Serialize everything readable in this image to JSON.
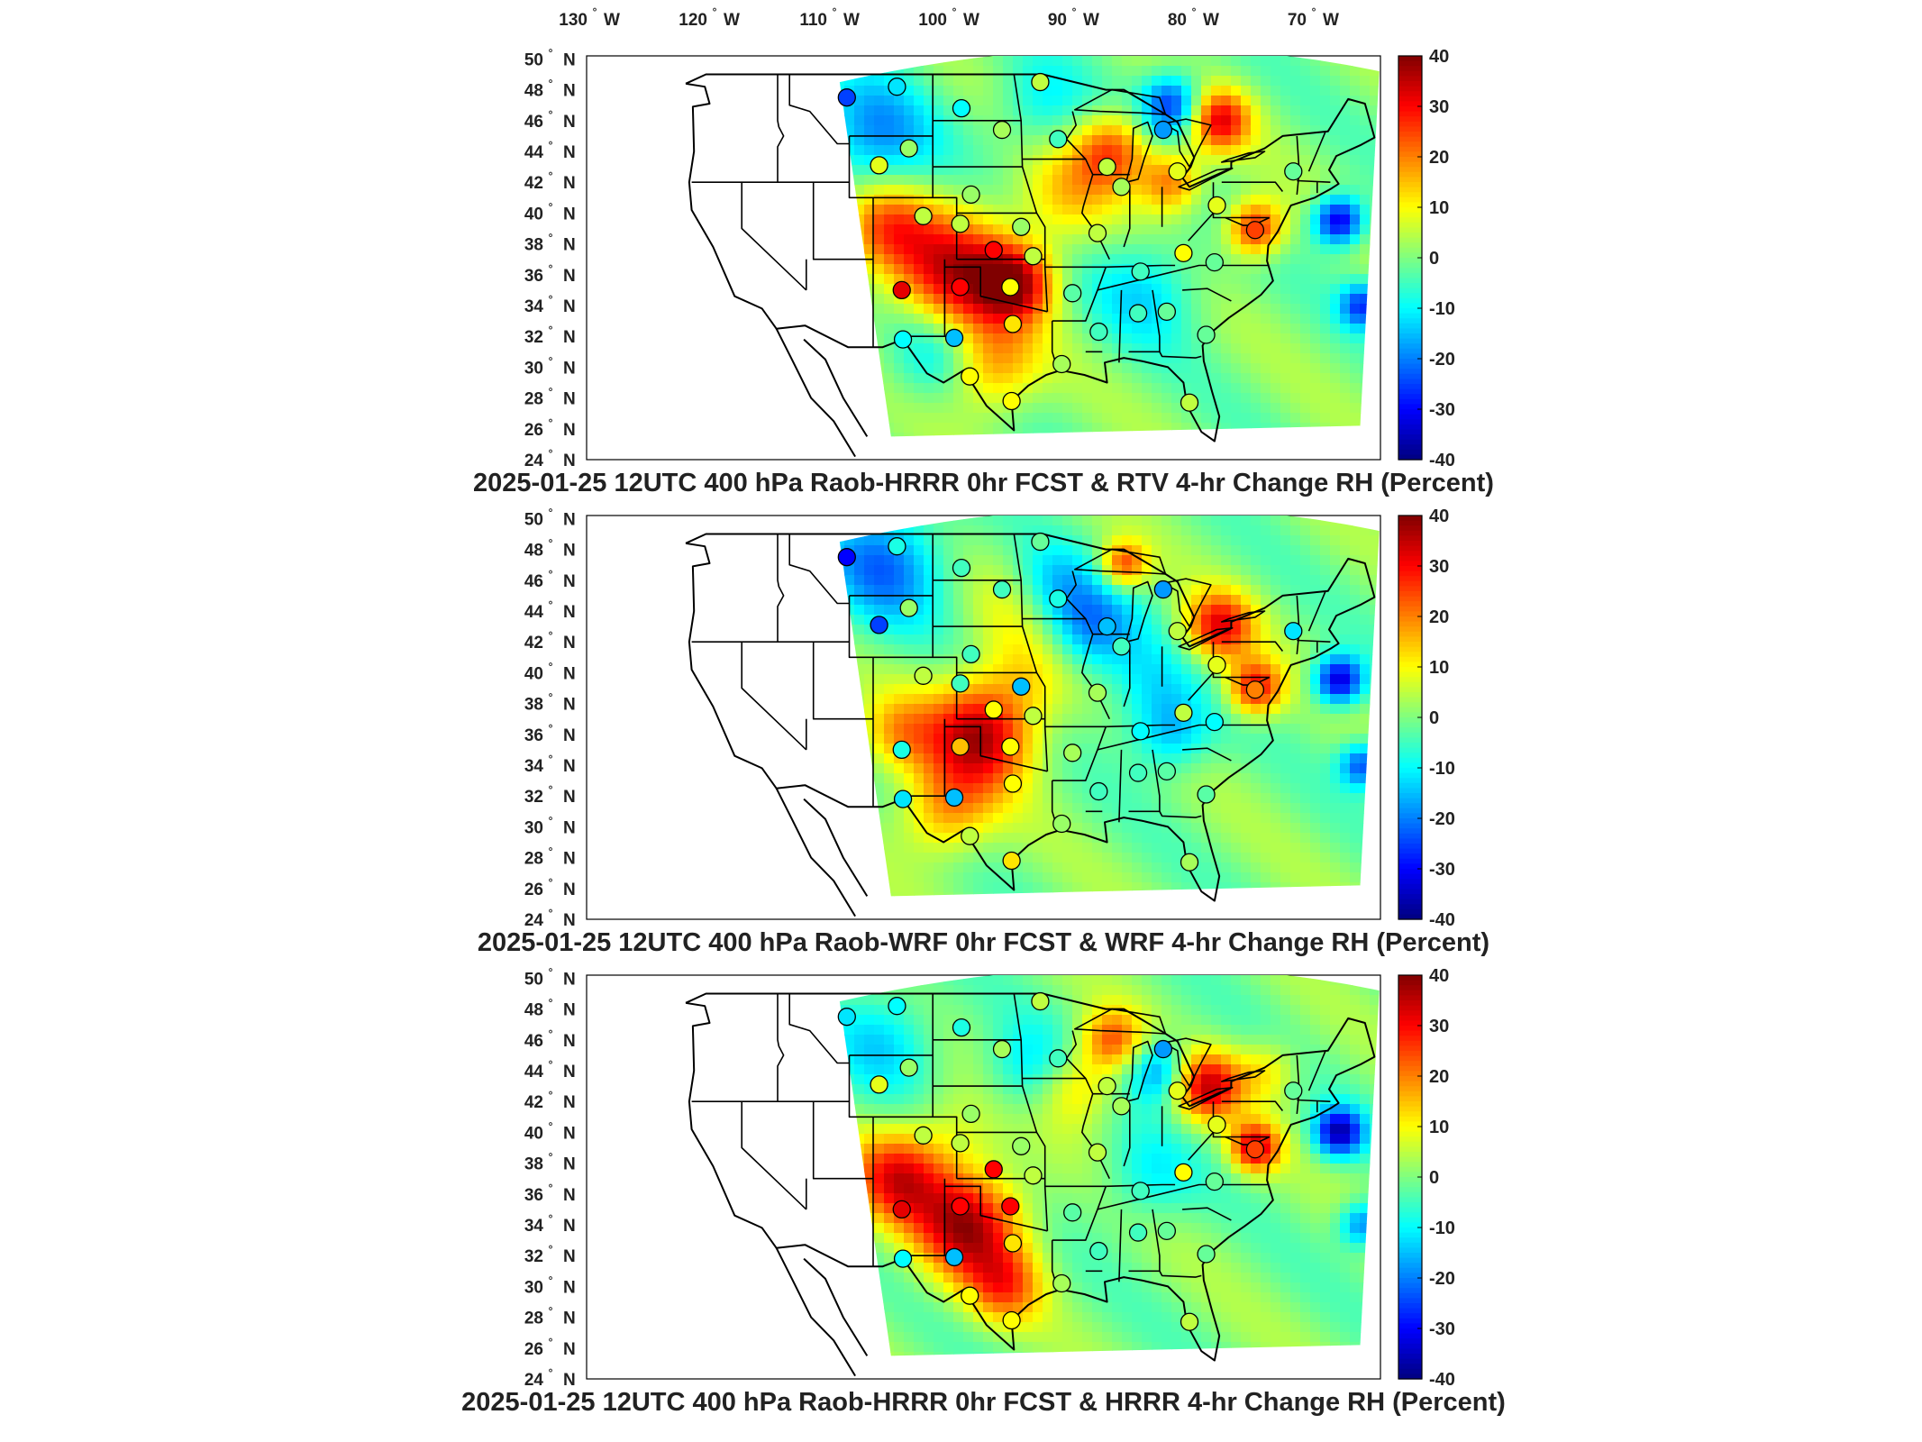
{
  "lon_labels": [
    "130",
    "120",
    "110",
    "100",
    "90",
    "80",
    "70"
  ],
  "lon_suffix": "W",
  "lat_labels": [
    "50",
    "48",
    "46",
    "44",
    "42",
    "40",
    "38",
    "36",
    "34",
    "32",
    "30",
    "28",
    "26",
    "24"
  ],
  "lat_suffix": "N",
  "degree_symbol": "°",
  "colorbar_ticks": [
    "40",
    "30",
    "20",
    "10",
    "0",
    "-10",
    "-20",
    "-30",
    "-40"
  ],
  "panels": [
    {
      "title": "2025-01-25 12UTC 400 hPa Raob-HRRR 0hr FCST & RTV 4-hr Change RH (Percent)",
      "raob_points": [
        {
          "lon": -111.2,
          "lat": 47.5,
          "value": -25
        },
        {
          "lon": -107.0,
          "lat": 48.2,
          "value": -12
        },
        {
          "lon": -101.6,
          "lat": 46.8,
          "value": -10
        },
        {
          "lon": -95.0,
          "lat": 48.5,
          "value": 5
        },
        {
          "lon": -108.5,
          "lat": 43.1,
          "value": 8
        },
        {
          "lon": -106.0,
          "lat": 44.2,
          "value": 2
        },
        {
          "lon": -98.2,
          "lat": 45.4,
          "value": 3
        },
        {
          "lon": -100.8,
          "lat": 41.2,
          "value": 2
        },
        {
          "lon": -104.8,
          "lat": 39.8,
          "value": 5
        },
        {
          "lon": -93.5,
          "lat": 44.8,
          "value": -5
        },
        {
          "lon": -89.4,
          "lat": 43.0,
          "value": 5
        },
        {
          "lon": -83.5,
          "lat": 42.7,
          "value": 8
        },
        {
          "lon": -84.7,
          "lat": 45.4,
          "value": -18
        },
        {
          "lon": -88.2,
          "lat": 41.7,
          "value": 3
        },
        {
          "lon": -73.8,
          "lat": 42.7,
          "value": -2
        },
        {
          "lon": -77.0,
          "lat": 38.9,
          "value": 25
        },
        {
          "lon": -80.2,
          "lat": 40.5,
          "value": 8
        },
        {
          "lon": -96.6,
          "lat": 39.1,
          "value": 2
        },
        {
          "lon": -101.7,
          "lat": 39.3,
          "value": 5
        },
        {
          "lon": -95.6,
          "lat": 37.2,
          "value": 5
        },
        {
          "lon": -90.2,
          "lat": 38.7,
          "value": 5
        },
        {
          "lon": -86.6,
          "lat": 36.2,
          "value": -5
        },
        {
          "lon": -83.0,
          "lat": 37.4,
          "value": 10
        },
        {
          "lon": -80.4,
          "lat": 36.8,
          "value": -2
        },
        {
          "lon": -97.5,
          "lat": 35.2,
          "value": 10
        },
        {
          "lon": -101.7,
          "lat": 35.2,
          "value": 30
        },
        {
          "lon": -106.6,
          "lat": 35.0,
          "value": 32
        },
        {
          "lon": -98.9,
          "lat": 37.6,
          "value": 30
        },
        {
          "lon": -97.3,
          "lat": 32.8,
          "value": 12
        },
        {
          "lon": -92.3,
          "lat": 34.8,
          "value": -3
        },
        {
          "lon": -90.1,
          "lat": 32.3,
          "value": -5
        },
        {
          "lon": -86.8,
          "lat": 33.5,
          "value": -5
        },
        {
          "lon": -84.4,
          "lat": 33.6,
          "value": -2
        },
        {
          "lon": -81.1,
          "lat": 32.1,
          "value": -2
        },
        {
          "lon": -102.2,
          "lat": 31.9,
          "value": -15
        },
        {
          "lon": -106.5,
          "lat": 31.8,
          "value": -10
        },
        {
          "lon": -97.4,
          "lat": 27.8,
          "value": 10
        },
        {
          "lon": -100.9,
          "lat": 29.4,
          "value": 10
        },
        {
          "lon": -93.2,
          "lat": 30.2,
          "value": 3
        },
        {
          "lon": -82.5,
          "lat": 27.7,
          "value": 5
        }
      ]
    },
    {
      "title": "2025-01-25 12UTC 400 hPa Raob-WRF 0hr FCST & WRF 4-hr Change RH (Percent)",
      "raob_points": [
        {
          "lon": -111.2,
          "lat": 47.5,
          "value": -30
        },
        {
          "lon": -107.0,
          "lat": 48.2,
          "value": -8
        },
        {
          "lon": -101.6,
          "lat": 46.8,
          "value": -5
        },
        {
          "lon": -95.0,
          "lat": 48.5,
          "value": -2
        },
        {
          "lon": -108.5,
          "lat": 43.1,
          "value": -25
        },
        {
          "lon": -106.0,
          "lat": 44.2,
          "value": 2
        },
        {
          "lon": -98.2,
          "lat": 45.4,
          "value": -5
        },
        {
          "lon": -100.8,
          "lat": 41.2,
          "value": -5
        },
        {
          "lon": -104.8,
          "lat": 39.8,
          "value": 5
        },
        {
          "lon": -93.5,
          "lat": 44.8,
          "value": -8
        },
        {
          "lon": -89.4,
          "lat": 43.0,
          "value": -15
        },
        {
          "lon": -83.5,
          "lat": 42.7,
          "value": 5
        },
        {
          "lon": -84.7,
          "lat": 45.4,
          "value": -18
        },
        {
          "lon": -88.2,
          "lat": 41.7,
          "value": -5
        },
        {
          "lon": -73.8,
          "lat": 42.7,
          "value": -12
        },
        {
          "lon": -77.0,
          "lat": 38.9,
          "value": 20
        },
        {
          "lon": -80.2,
          "lat": 40.5,
          "value": 8
        },
        {
          "lon": -96.6,
          "lat": 39.1,
          "value": -15
        },
        {
          "lon": -101.7,
          "lat": 39.3,
          "value": -5
        },
        {
          "lon": -95.6,
          "lat": 37.2,
          "value": 5
        },
        {
          "lon": -90.2,
          "lat": 38.7,
          "value": 3
        },
        {
          "lon": -86.6,
          "lat": 36.2,
          "value": -10
        },
        {
          "lon": -83.0,
          "lat": 37.4,
          "value": 5
        },
        {
          "lon": -80.4,
          "lat": 36.8,
          "value": -10
        },
        {
          "lon": -97.5,
          "lat": 35.2,
          "value": 10
        },
        {
          "lon": -101.7,
          "lat": 35.2,
          "value": 15
        },
        {
          "lon": -106.6,
          "lat": 35.0,
          "value": -8
        },
        {
          "lon": -98.9,
          "lat": 37.6,
          "value": 10
        },
        {
          "lon": -97.3,
          "lat": 32.8,
          "value": 10
        },
        {
          "lon": -92.3,
          "lat": 34.8,
          "value": 3
        },
        {
          "lon": -90.1,
          "lat": 32.3,
          "value": -5
        },
        {
          "lon": -86.8,
          "lat": 33.5,
          "value": -5
        },
        {
          "lon": -84.4,
          "lat": 33.6,
          "value": -3
        },
        {
          "lon": -81.1,
          "lat": 32.1,
          "value": -3
        },
        {
          "lon": -102.2,
          "lat": 31.9,
          "value": -15
        },
        {
          "lon": -106.5,
          "lat": 31.8,
          "value": -12
        },
        {
          "lon": -97.4,
          "lat": 27.8,
          "value": 12
        },
        {
          "lon": -100.9,
          "lat": 29.4,
          "value": 5
        },
        {
          "lon": -93.2,
          "lat": 30.2,
          "value": 2
        },
        {
          "lon": -82.5,
          "lat": 27.7,
          "value": 3
        }
      ]
    },
    {
      "title": "2025-01-25 12UTC 400 hPa Raob-HRRR 0hr FCST & HRRR 4-hr Change RH (Percent)",
      "raob_points": [
        {
          "lon": -111.2,
          "lat": 47.5,
          "value": -12
        },
        {
          "lon": -107.0,
          "lat": 48.2,
          "value": -10
        },
        {
          "lon": -101.6,
          "lat": 46.8,
          "value": -8
        },
        {
          "lon": -95.0,
          "lat": 48.5,
          "value": 5
        },
        {
          "lon": -108.5,
          "lat": 43.1,
          "value": 8
        },
        {
          "lon": -106.0,
          "lat": 44.2,
          "value": 2
        },
        {
          "lon": -98.2,
          "lat": 45.4,
          "value": 3
        },
        {
          "lon": -100.8,
          "lat": 41.2,
          "value": 2
        },
        {
          "lon": -104.8,
          "lat": 39.8,
          "value": 5
        },
        {
          "lon": -93.5,
          "lat": 44.8,
          "value": -5
        },
        {
          "lon": -89.4,
          "lat": 43.0,
          "value": 5
        },
        {
          "lon": -83.5,
          "lat": 42.7,
          "value": 8
        },
        {
          "lon": -84.7,
          "lat": 45.4,
          "value": -18
        },
        {
          "lon": -88.2,
          "lat": 41.7,
          "value": 3
        },
        {
          "lon": -73.8,
          "lat": 42.7,
          "value": -2
        },
        {
          "lon": -77.0,
          "lat": 38.9,
          "value": 25
        },
        {
          "lon": -80.2,
          "lat": 40.5,
          "value": 8
        },
        {
          "lon": -96.6,
          "lat": 39.1,
          "value": 2
        },
        {
          "lon": -101.7,
          "lat": 39.3,
          "value": 5
        },
        {
          "lon": -95.6,
          "lat": 37.2,
          "value": 5
        },
        {
          "lon": -90.2,
          "lat": 38.7,
          "value": 5
        },
        {
          "lon": -86.6,
          "lat": 36.2,
          "value": -5
        },
        {
          "lon": -83.0,
          "lat": 37.4,
          "value": 10
        },
        {
          "lon": -80.4,
          "lat": 36.8,
          "value": -2
        },
        {
          "lon": -97.5,
          "lat": 35.2,
          "value": 30
        },
        {
          "lon": -101.7,
          "lat": 35.2,
          "value": 30
        },
        {
          "lon": -106.6,
          "lat": 35.0,
          "value": 32
        },
        {
          "lon": -98.9,
          "lat": 37.6,
          "value": 30
        },
        {
          "lon": -97.3,
          "lat": 32.8,
          "value": 12
        },
        {
          "lon": -92.3,
          "lat": 34.8,
          "value": -3
        },
        {
          "lon": -90.1,
          "lat": 32.3,
          "value": -5
        },
        {
          "lon": -86.8,
          "lat": 33.5,
          "value": -5
        },
        {
          "lon": -84.4,
          "lat": 33.6,
          "value": -2
        },
        {
          "lon": -81.1,
          "lat": 32.1,
          "value": -2
        },
        {
          "lon": -102.2,
          "lat": 31.9,
          "value": -15
        },
        {
          "lon": -106.5,
          "lat": 31.8,
          "value": -10
        },
        {
          "lon": -97.4,
          "lat": 27.8,
          "value": 10
        },
        {
          "lon": -100.9,
          "lat": 29.4,
          "value": 10
        },
        {
          "lon": -93.2,
          "lat": 30.2,
          "value": 3
        },
        {
          "lon": -82.5,
          "lat": 27.7,
          "value": 5
        }
      ]
    }
  ],
  "colormap": "jet",
  "colorbar_range": [
    -40,
    40
  ]
}
